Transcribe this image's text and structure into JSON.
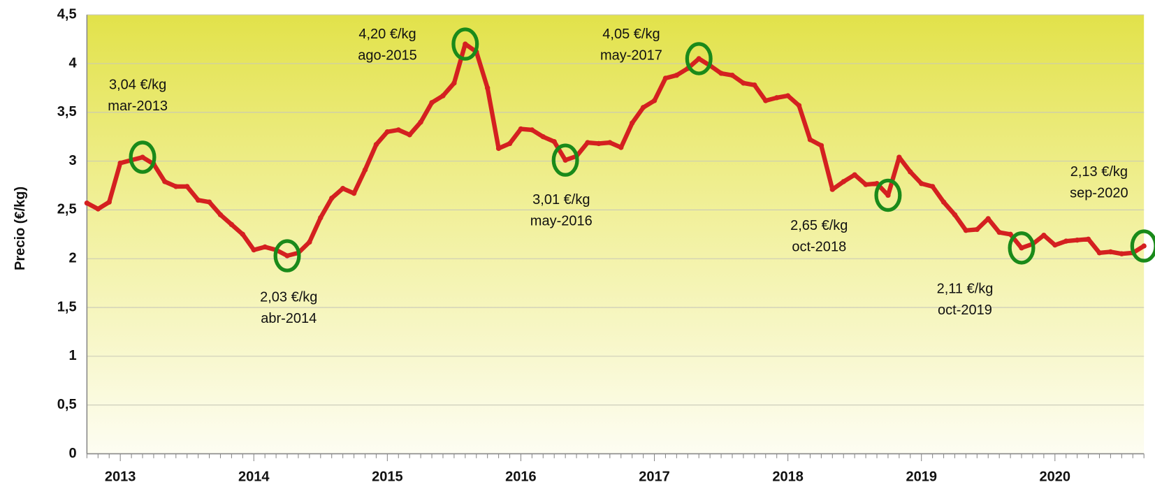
{
  "chart_data": {
    "type": "line",
    "y_label": "Precio (€/kg)",
    "categories": [
      null,
      null,
      null,
      "2013",
      null,
      null,
      null,
      null,
      null,
      null,
      null,
      null,
      null,
      null,
      null,
      "2014",
      null,
      null,
      null,
      null,
      null,
      null,
      null,
      null,
      null,
      null,
      null,
      "2015",
      null,
      null,
      null,
      null,
      null,
      null,
      null,
      null,
      null,
      null,
      null,
      "2016",
      null,
      null,
      null,
      null,
      null,
      null,
      null,
      null,
      null,
      null,
      null,
      "2017",
      null,
      null,
      null,
      null,
      null,
      null,
      null,
      null,
      null,
      null,
      null,
      "2018",
      null,
      null,
      null,
      null,
      null,
      null,
      null,
      null,
      null,
      null,
      null,
      "2019",
      null,
      null,
      null,
      null,
      null,
      null,
      null,
      null,
      null,
      null,
      null,
      "2020",
      null,
      null,
      null,
      null,
      null,
      null,
      null,
      null
    ],
    "values": [
      2.57,
      2.51,
      2.58,
      2.98,
      3.01,
      3.04,
      2.97,
      2.79,
      2.74,
      2.74,
      2.6,
      2.58,
      2.45,
      2.35,
      2.25,
      2.09,
      2.12,
      2.09,
      2.03,
      2.06,
      2.17,
      2.42,
      2.62,
      2.72,
      2.67,
      2.91,
      3.17,
      3.3,
      3.32,
      3.27,
      3.4,
      3.6,
      3.67,
      3.8,
      4.2,
      4.12,
      3.75,
      3.13,
      3.18,
      3.33,
      3.32,
      3.25,
      3.2,
      3.01,
      3.05,
      3.19,
      3.18,
      3.19,
      3.14,
      3.39,
      3.55,
      3.62,
      3.85,
      3.88,
      3.95,
      4.05,
      3.98,
      3.9,
      3.88,
      3.8,
      3.78,
      3.62,
      3.65,
      3.67,
      3.57,
      3.22,
      3.16,
      2.71,
      2.79,
      2.86,
      2.76,
      2.77,
      2.65,
      3.04,
      2.89,
      2.77,
      2.74,
      2.58,
      2.45,
      2.29,
      2.3,
      2.41,
      2.27,
      2.25,
      2.11,
      2.15,
      2.24,
      2.14,
      2.18,
      2.19,
      2.2,
      2.06,
      2.07,
      2.05,
      2.06,
      2.13
    ],
    "color": "#d42020",
    "ylim": [
      0,
      4.5
    ],
    "yticks": [
      0,
      {
        "value": 0.5,
        "label": "0,5"
      },
      1,
      {
        "value": 1.5,
        "label": "1,5"
      },
      2,
      {
        "value": 2.5,
        "label": "2,5"
      },
      3,
      {
        "value": 3.5,
        "label": "3,5"
      },
      4,
      {
        "value": 4.5,
        "label": "4,5"
      }
    ],
    "grid": true,
    "annotations": [
      {
        "label": "3,04 €/kg",
        "date": "mar-2013"
      },
      {
        "label": "2,03 €/kg",
        "date": "abr-2014"
      },
      {
        "label": "4,20 €/kg",
        "date": "ago-2015"
      },
      {
        "label": "3,01 €/kg",
        "date": "may-2016"
      },
      {
        "label": "4,05 €/kg",
        "date": "may-2017"
      },
      {
        "label": "2,65 €/kg",
        "date": "oct-2018"
      },
      {
        "label": "2,11 €/kg",
        "date": "oct-2019"
      },
      {
        "label": "2,13 €/kg",
        "date": "sep-2020"
      }
    ]
  }
}
